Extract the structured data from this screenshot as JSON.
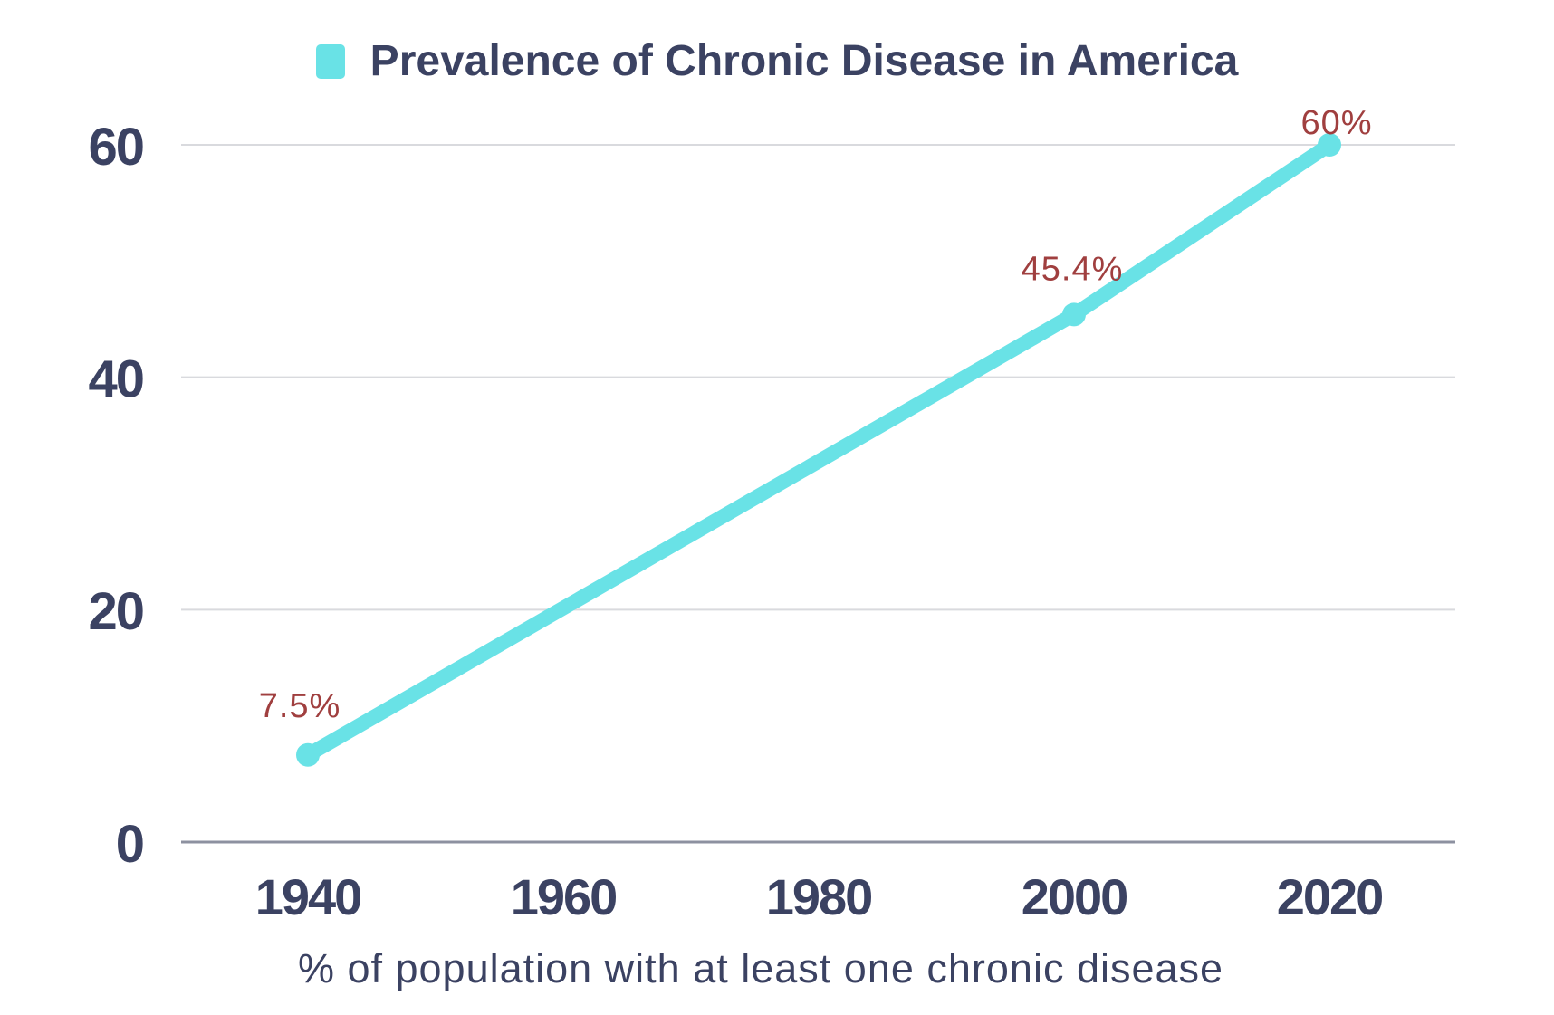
{
  "legend": {
    "series_label": "Prevalence of Chronic Disease in America",
    "swatch_color": "#69e2e6"
  },
  "caption": "% of population with at least one chronic disease",
  "colors": {
    "line": "#69e2e6",
    "point": "#69e2e6",
    "title_text": "#3b4262",
    "axis_text": "#3b4262",
    "data_label": "#a03f3f",
    "gridline": "#d9dade",
    "zero_axis_line": "#8d91a0",
    "background": "#ffffff"
  },
  "chart_data": {
    "type": "line",
    "title": "Prevalence of Chronic Disease in America",
    "xlabel": "% of population with at least one chronic disease",
    "ylabel": "",
    "x": [
      1940,
      2000,
      2020
    ],
    "series": [
      {
        "name": "Prevalence of Chronic Disease in America",
        "values": [
          7.5,
          45.4,
          60
        ]
      }
    ],
    "point_labels": [
      "7.5%",
      "45.4%",
      "60%"
    ],
    "x_ticks": [
      "1940",
      "1960",
      "1980",
      "2000",
      "2020"
    ],
    "y_ticks": [
      "0",
      "20",
      "40",
      "60"
    ],
    "ylim": [
      0,
      60
    ],
    "xlim": [
      1930,
      2030
    ],
    "grid": "horizontal-only",
    "legend_position": "top-center"
  }
}
